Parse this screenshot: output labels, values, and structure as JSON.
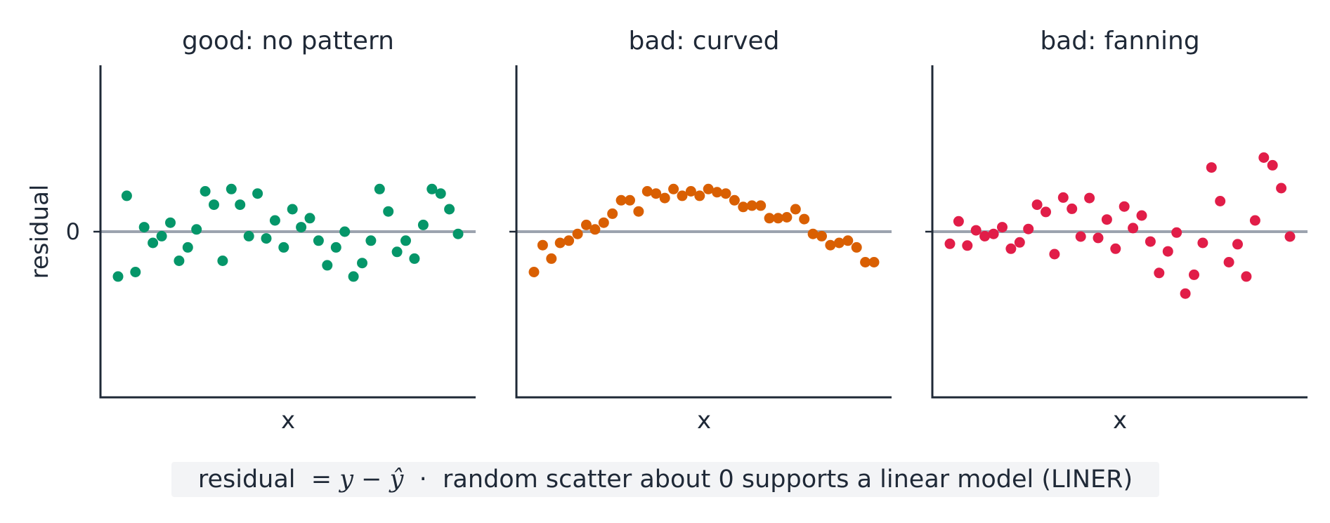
{
  "chart_data": [
    {
      "type": "scatter",
      "title": "good: no pattern",
      "xlabel": "x",
      "ylabel": "residual",
      "yticks": [
        "0"
      ],
      "ylim": [
        -3.7,
        3.7
      ],
      "reference_line": 0,
      "color": "#059669",
      "y": [
        -1.0,
        0.8,
        -0.9,
        0.1,
        -0.25,
        -0.1,
        0.2,
        -0.65,
        -0.35,
        0.05,
        0.9,
        0.6,
        -0.65,
        0.95,
        0.6,
        -0.1,
        0.85,
        -0.15,
        0.25,
        -0.35,
        0.5,
        0.1,
        0.3,
        -0.2,
        -0.75,
        -0.35,
        0.0,
        -1.0,
        -0.7,
        -0.2,
        0.95,
        0.45,
        -0.45,
        -0.2,
        -0.6,
        0.15,
        0.95,
        0.85,
        0.5,
        -0.05
      ]
    },
    {
      "type": "scatter",
      "title": "bad: curved",
      "xlabel": "x",
      "ylabel": "",
      "ylim": [
        -3.7,
        3.7
      ],
      "reference_line": 0,
      "color": "#d95f02",
      "y": [
        -0.9,
        -0.3,
        -0.6,
        -0.25,
        -0.2,
        -0.05,
        0.15,
        0.05,
        0.2,
        0.4,
        0.7,
        0.7,
        0.45,
        0.9,
        0.85,
        0.75,
        0.95,
        0.8,
        0.9,
        0.8,
        0.95,
        0.88,
        0.85,
        0.7,
        0.55,
        0.58,
        0.58,
        0.3,
        0.3,
        0.32,
        0.5,
        0.28,
        -0.05,
        -0.1,
        -0.3,
        -0.25,
        -0.2,
        -0.35,
        -0.68,
        -0.68
      ]
    },
    {
      "type": "scatter",
      "title": "bad: fanning",
      "xlabel": "x",
      "ylabel": "",
      "ylim": [
        -3.7,
        3.7
      ],
      "reference_line": 0,
      "color": "#e11d48",
      "y": [
        -0.27,
        0.23,
        -0.31,
        0.03,
        -0.1,
        -0.05,
        0.1,
        -0.38,
        -0.24,
        0.06,
        0.6,
        0.44,
        -0.5,
        0.76,
        0.51,
        -0.11,
        0.75,
        -0.14,
        0.27,
        -0.38,
        0.56,
        0.08,
        0.36,
        -0.22,
        -0.92,
        -0.44,
        -0.02,
        -1.38,
        -0.96,
        -0.25,
        1.43,
        0.68,
        -0.68,
        -0.28,
        -1.0,
        0.25,
        1.65,
        1.48,
        0.97,
        -0.11
      ]
    }
  ],
  "caption": {
    "prefix": "residual",
    "math": "= y − ŷ",
    "separator": "·",
    "text": "random scatter about 0 supports a linear model (LINER)"
  }
}
